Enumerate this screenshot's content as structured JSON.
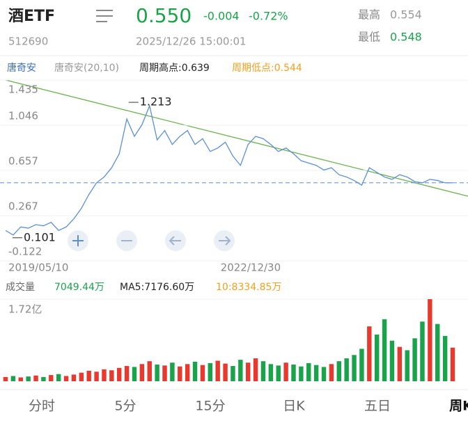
{
  "header": {
    "name": "酒ETF",
    "code": "512690",
    "price": "0.550",
    "change": "-0.004",
    "change_pct": "-0.72%",
    "time": "2025/12/26 15:00:01",
    "high_label": "最高",
    "high": "0.554",
    "low_label": "最低",
    "low": "0.548"
  },
  "indicator_bar": {
    "name": "唐奇安",
    "params": "唐奇安(20,10)",
    "period_high": "周期高点:0.639",
    "period_low": "周期低点:0.544"
  },
  "volume_header": {
    "title": "成交量",
    "value": "7049.44万",
    "ma5": "MA5:7176.60万",
    "ma10": "10:8334.85万"
  },
  "tabs": [
    "分时",
    "5分",
    "15分",
    "日K",
    "五日",
    "周K"
  ],
  "chart_data": [
    {
      "type": "line",
      "color": "#5a8fd8",
      "categories": [
        "2019/05/10",
        null,
        null,
        null,
        null,
        null,
        null,
        null,
        null,
        null,
        null,
        null,
        null,
        null,
        null,
        null,
        null,
        null,
        null,
        null,
        null,
        null,
        null,
        null,
        null,
        null,
        null,
        null,
        "2022/12/30",
        null,
        null,
        null,
        null,
        null,
        null,
        null,
        null,
        null,
        null,
        null,
        null,
        null,
        null,
        null,
        null,
        null,
        null,
        null,
        null,
        null,
        null,
        null,
        null,
        null,
        null,
        null,
        null,
        null,
        null,
        null
      ],
      "values": [
        0.14,
        0.101,
        0.17,
        0.16,
        0.19,
        0.18,
        0.21,
        0.14,
        0.17,
        0.24,
        0.33,
        0.45,
        0.55,
        0.6,
        0.68,
        0.8,
        1.1,
        0.95,
        1.05,
        1.213,
        0.92,
        1.0,
        0.88,
        0.95,
        1.0,
        0.88,
        0.93,
        0.82,
        0.85,
        0.9,
        0.78,
        0.7,
        0.88,
        0.95,
        0.93,
        0.88,
        0.82,
        0.85,
        0.8,
        0.74,
        0.72,
        0.7,
        0.66,
        0.68,
        0.62,
        0.6,
        0.57,
        0.53,
        0.68,
        0.64,
        0.6,
        0.58,
        0.62,
        0.6,
        0.56,
        0.55,
        0.58,
        0.57,
        0.55,
        0.55
      ],
      "annotations": [
        "1.213",
        "0.101"
      ],
      "ylim": [
        -0.122,
        1.435
      ],
      "yticks": [
        1.435,
        1.046,
        0.657,
        0.267,
        -0.122
      ],
      "grid": true
    },
    {
      "type": "bar",
      "up_color": "#e8392f",
      "down_color": "#1aa34a",
      "values": [
        900,
        1100,
        800,
        1000,
        1200,
        900,
        1300,
        1500,
        1100,
        1400,
        1800,
        2200,
        2000,
        2500,
        2300,
        2800,
        3200,
        3000,
        3600,
        4200,
        3500,
        3300,
        3900,
        3100,
        3600,
        4100,
        3400,
        3800,
        4300,
        3700,
        3200,
        4500,
        3900,
        4800,
        4200,
        3600,
        3300,
        3900,
        3500,
        3100,
        3800,
        3400,
        3000,
        3600,
        4200,
        4800,
        5500,
        6800,
        11500,
        9800,
        13000,
        8500,
        7200,
        6500,
        9000,
        12500,
        17200,
        12000,
        9500,
        7049.44
      ],
      "ylim": [
        0,
        17200
      ],
      "yticks": [
        {
          "value": 17200,
          "label": "1.72亿"
        }
      ],
      "grid": true
    }
  ]
}
